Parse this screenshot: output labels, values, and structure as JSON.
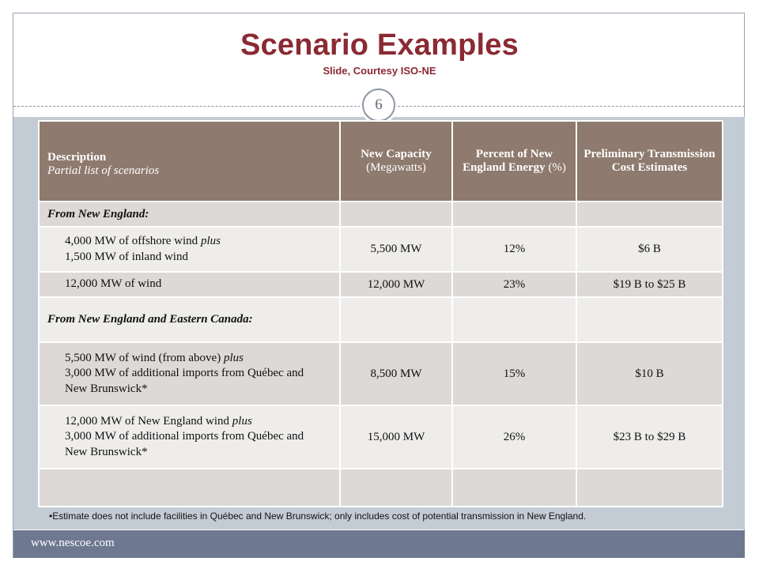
{
  "header": {
    "title": "Scenario Examples",
    "subtitle": "Slide, Courtesy ISO-NE",
    "slide_number": "6"
  },
  "table": {
    "columns": {
      "description": "Description",
      "description_sub": "Partial list of scenarios",
      "capacity": "New Capacity",
      "capacity_unit": "(Megawatts)",
      "percent": "Percent of New England Energy",
      "percent_unit": "(%)",
      "cost": "Preliminary Transmission Cost Estimates"
    },
    "section1": "From New England:",
    "rows1": [
      {
        "desc_a": "4,000 MW of offshore wind",
        "desc_a_em": "plus",
        "desc_b": "1,500 MW of inland wind",
        "capacity": "5,500 MW",
        "percent": "12%",
        "cost": "$6 B"
      },
      {
        "desc": "12,000 MW of wind",
        "capacity": "12,000 MW",
        "percent": "23%",
        "cost": "$19 B to $25 B"
      }
    ],
    "section2": "From New England and Eastern Canada:",
    "rows2": [
      {
        "desc_a": "5,500 MW of wind (from above)",
        "desc_a_em": "plus",
        "desc_b": "3,000 MW of additional imports from Québec and New Brunswick*",
        "capacity": "8,500 MW",
        "percent": "15%",
        "cost": "$10 B"
      },
      {
        "desc_a": "12,000 MW of New England wind",
        "desc_a_em": "plus",
        "desc_b": "3,000 MW of additional imports from Québec and New Brunswick*",
        "capacity": "15,000 MW",
        "percent": "26%",
        "cost": "$23 B to $29 B"
      }
    ]
  },
  "footnote": "•Estimate does not include facilities in Québec and New Brunswick; only includes cost of potential transmission in New England.",
  "footer": {
    "url": "www.nescoe.com"
  }
}
